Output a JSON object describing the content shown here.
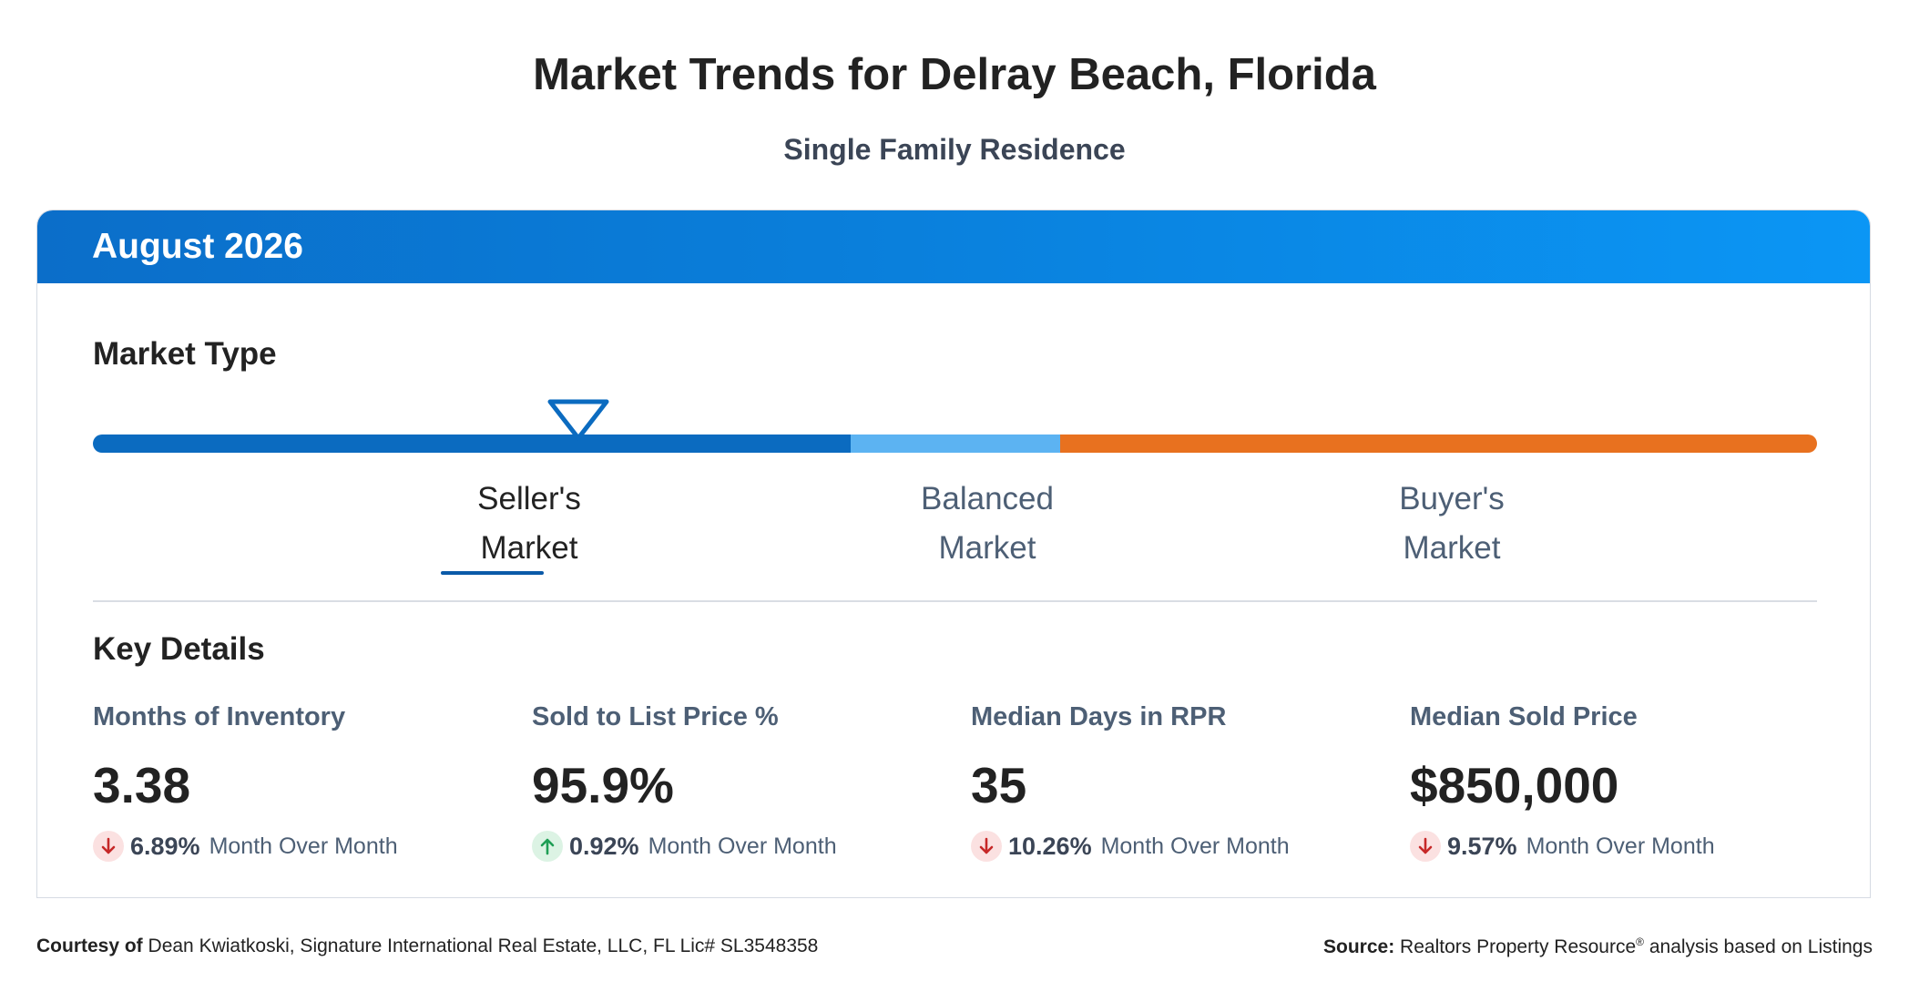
{
  "header": {
    "title": "Market Trends for Delray Beach, Florida",
    "subtitle": "Single Family Residence"
  },
  "card": {
    "period": "August 2026",
    "market_type_title": "Market Type",
    "market_types": [
      {
        "line1": "Seller's",
        "line2": "Market",
        "active": true
      },
      {
        "line1": "Balanced",
        "line2": "Market",
        "active": false
      },
      {
        "line1": "Buyer's",
        "line2": "Market",
        "active": false
      }
    ],
    "key_details_title": "Key Details",
    "metrics": [
      {
        "label": "Months of Inventory",
        "value": "3.38",
        "change": "6.89%",
        "direction": "down",
        "period_label": "Month Over Month"
      },
      {
        "label": "Sold to List Price %",
        "value": "95.9%",
        "change": "0.92%",
        "direction": "up",
        "period_label": "Month Over Month"
      },
      {
        "label": "Median Days in RPR",
        "value": "35",
        "change": "10.26%",
        "direction": "down",
        "period_label": "Month Over Month"
      },
      {
        "label": "Median Sold Price",
        "value": "$850,000",
        "change": "9.57%",
        "direction": "down",
        "period_label": "Month Over Month"
      }
    ]
  },
  "colors": {
    "seller": "#0b6bc0",
    "balanced": "#5cb3f2",
    "buyer": "#e8711f",
    "down": "#c62828",
    "up": "#1e9e55"
  },
  "footer": {
    "courtesy_label": "Courtesy of",
    "courtesy_text": "Dean Kwiatkoski, Signature International Real Estate, LLC, FL Lic# SL3548358",
    "source_label": "Source:",
    "source_text_1": "Realtors Property Resource",
    "source_reg": "®",
    "source_text_2": " analysis based on Listings"
  }
}
